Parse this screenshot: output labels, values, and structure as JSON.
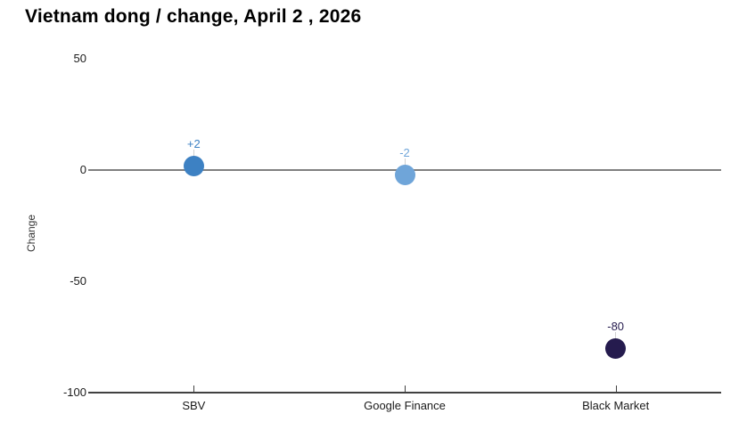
{
  "title": "Vietnam dong / change, April 2 , 2026",
  "chart_data": {
    "type": "scatter",
    "title": "Vietnam dong / change, April 2 , 2026",
    "xlabel": "",
    "ylabel": "Change",
    "categories": [
      "SBV",
      "Google Finance",
      "Black Market"
    ],
    "values": [
      2,
      -2,
      -80
    ],
    "point_labels": [
      "+2",
      "-2",
      "-80"
    ],
    "point_colors": [
      "#3d81c3",
      "#6fa5d9",
      "#251b4e"
    ],
    "ylim": [
      -100,
      50
    ],
    "yticks": [
      50,
      0,
      -50,
      -100
    ],
    "ytick_labels": [
      "50",
      "0",
      "-50",
      "-100"
    ],
    "baseline_value": 0,
    "grid": false,
    "legend": "none"
  },
  "colors": {
    "background": "#ffffff",
    "title_text": "#000000",
    "axis_text": "#1a1a1a",
    "axis_line": "#414141",
    "zero_line": "#808080",
    "connector": "#d0d0d0"
  }
}
